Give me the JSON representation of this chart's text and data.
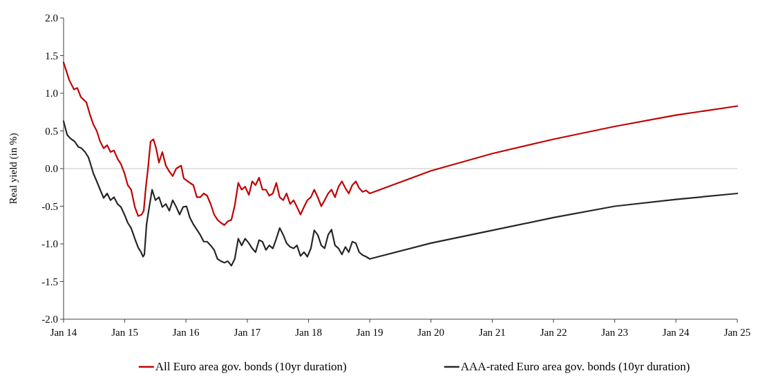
{
  "chart_data": {
    "type": "line",
    "ylabel": "Real yield (in %)",
    "xlim": [
      "2014-01-01",
      "2025-01-01"
    ],
    "xticks": [
      {
        "value": "2014-01-01",
        "label": "Jan 14"
      },
      {
        "value": "2015-01-01",
        "label": "Jan 15"
      },
      {
        "value": "2016-01-01",
        "label": "Jan 16"
      },
      {
        "value": "2017-01-01",
        "label": "Jan 17"
      },
      {
        "value": "2018-01-01",
        "label": "Jan 18"
      },
      {
        "value": "2019-01-01",
        "label": "Jan 19"
      },
      {
        "value": "2020-01-01",
        "label": "Jan 20"
      },
      {
        "value": "2021-01-01",
        "label": "Jan 21"
      },
      {
        "value": "2022-01-01",
        "label": "Jan 22"
      },
      {
        "value": "2023-01-01",
        "label": "Jan 23"
      },
      {
        "value": "2024-01-01",
        "label": "Jan 24"
      },
      {
        "value": "2025-01-01",
        "label": "Jan 25"
      }
    ],
    "ylim": [
      -2,
      2
    ],
    "yticks": [
      {
        "value": -2,
        "label": "-2.0"
      },
      {
        "value": -1.5,
        "label": "-1.5"
      },
      {
        "value": -1,
        "label": "-1.0"
      },
      {
        "value": -0.5,
        "label": "-0.5"
      },
      {
        "value": 0,
        "label": "0.0"
      },
      {
        "value": 0.5,
        "label": "0.5"
      },
      {
        "value": 1,
        "label": "1.0"
      },
      {
        "value": 1.5,
        "label": "1.5"
      },
      {
        "value": 2,
        "label": "2.0"
      }
    ],
    "ref_lines": [
      {
        "axis": "y",
        "value": 0,
        "color": "#d9d9d9"
      }
    ],
    "legend": "bottom",
    "line_style": "solid",
    "series": [
      {
        "name": "All Euro area gov. bonds (10yr duration)",
        "color": "#c00000",
        "x": [
          "2014-01-01",
          "2014-02-03",
          "2014-03-04",
          "2014-03-24",
          "2014-04-14",
          "2014-05-17",
          "2014-06-07",
          "2014-06-27",
          "2014-07-18",
          "2014-08-07",
          "2014-08-28",
          "2014-09-18",
          "2014-10-08",
          "2014-10-29",
          "2014-11-19",
          "2014-12-09",
          "2014-12-30",
          "2015-01-19",
          "2015-02-08",
          "2015-03-02",
          "2015-03-22",
          "2015-04-12",
          "2015-04-24",
          "2015-05-07",
          "2015-05-19",
          "2015-06-04",
          "2015-06-21",
          "2015-07-07",
          "2015-07-24",
          "2015-08-13",
          "2015-09-03",
          "2015-09-24",
          "2015-10-14",
          "2015-11-04",
          "2015-12-03",
          "2015-12-19",
          "2016-01-12",
          "2016-02-14",
          "2016-03-06",
          "2016-03-26",
          "2016-04-16",
          "2016-05-06",
          "2016-05-27",
          "2016-06-17",
          "2016-07-07",
          "2016-07-28",
          "2016-08-17",
          "2016-09-07",
          "2016-09-28",
          "2016-10-18",
          "2016-11-08",
          "2016-11-28",
          "2016-12-19",
          "2017-01-10",
          "2017-01-30",
          "2017-02-19",
          "2017-03-12",
          "2017-04-01",
          "2017-04-22",
          "2017-05-12",
          "2017-06-02",
          "2017-06-23",
          "2017-07-13",
          "2017-08-03",
          "2017-08-23",
          "2017-09-13",
          "2017-10-04",
          "2017-10-24",
          "2017-11-14",
          "2017-12-05",
          "2017-12-25",
          "2018-01-15",
          "2018-02-04",
          "2018-02-25",
          "2018-03-18",
          "2018-04-07",
          "2018-04-28",
          "2018-05-18",
          "2018-06-08",
          "2018-06-29",
          "2018-07-19",
          "2018-08-09",
          "2018-08-29",
          "2018-09-19",
          "2018-10-10",
          "2018-10-30",
          "2018-11-20",
          "2018-12-10",
          "2019-01-01",
          "2020-01-01",
          "2021-01-01",
          "2022-01-01",
          "2023-01-01",
          "2024-01-01",
          "2025-01-01"
        ],
        "values": [
          1.41,
          1.18,
          1.05,
          1.07,
          0.95,
          0.88,
          0.72,
          0.59,
          0.5,
          0.36,
          0.27,
          0.31,
          0.22,
          0.24,
          0.13,
          0.06,
          -0.06,
          -0.22,
          -0.28,
          -0.51,
          -0.63,
          -0.61,
          -0.56,
          -0.24,
          -0.01,
          0.36,
          0.39,
          0.27,
          0.08,
          0.22,
          0.04,
          -0.04,
          -0.1,
          0.0,
          0.04,
          -0.13,
          -0.17,
          -0.22,
          -0.38,
          -0.38,
          -0.33,
          -0.36,
          -0.47,
          -0.61,
          -0.68,
          -0.72,
          -0.75,
          -0.7,
          -0.68,
          -0.49,
          -0.19,
          -0.28,
          -0.24,
          -0.35,
          -0.17,
          -0.22,
          -0.12,
          -0.28,
          -0.28,
          -0.36,
          -0.33,
          -0.19,
          -0.38,
          -0.42,
          -0.33,
          -0.47,
          -0.42,
          -0.51,
          -0.61,
          -0.51,
          -0.42,
          -0.38,
          -0.28,
          -0.38,
          -0.5,
          -0.42,
          -0.33,
          -0.28,
          -0.38,
          -0.24,
          -0.17,
          -0.26,
          -0.33,
          -0.22,
          -0.17,
          -0.26,
          -0.31,
          -0.29,
          -0.33,
          -0.03,
          0.2,
          0.39,
          0.56,
          0.71,
          0.83
        ]
      },
      {
        "name": "AAA-rated Euro area gov. bonds (10yr duration)",
        "color": "#262626",
        "x": [
          "2014-01-01",
          "2014-01-22",
          "2014-02-11",
          "2014-03-08",
          "2014-03-29",
          "2014-04-18",
          "2014-05-09",
          "2014-05-29",
          "2014-06-11",
          "2014-06-27",
          "2014-07-18",
          "2014-08-07",
          "2014-08-28",
          "2014-09-18",
          "2014-10-08",
          "2014-10-29",
          "2014-11-19",
          "2014-12-09",
          "2014-12-30",
          "2015-01-19",
          "2015-02-08",
          "2015-03-02",
          "2015-03-22",
          "2015-04-08",
          "2015-04-20",
          "2015-04-28",
          "2015-05-11",
          "2015-05-27",
          "2015-06-13",
          "2015-07-03",
          "2015-07-24",
          "2015-08-13",
          "2015-09-03",
          "2015-09-24",
          "2015-10-14",
          "2015-11-04",
          "2015-11-24",
          "2015-12-15",
          "2016-01-04",
          "2016-01-24",
          "2016-02-14",
          "2016-03-06",
          "2016-03-26",
          "2016-04-16",
          "2016-05-06",
          "2016-05-27",
          "2016-06-17",
          "2016-07-07",
          "2016-07-28",
          "2016-08-17",
          "2016-09-07",
          "2016-09-28",
          "2016-10-18",
          "2016-11-08",
          "2016-11-28",
          "2016-12-19",
          "2017-01-10",
          "2017-01-30",
          "2017-02-19",
          "2017-03-12",
          "2017-04-01",
          "2017-04-22",
          "2017-05-12",
          "2017-06-02",
          "2017-06-23",
          "2017-07-13",
          "2017-08-03",
          "2017-08-23",
          "2017-09-13",
          "2017-10-04",
          "2017-10-24",
          "2017-11-14",
          "2017-12-05",
          "2017-12-25",
          "2018-01-15",
          "2018-02-04",
          "2018-02-25",
          "2018-03-18",
          "2018-04-07",
          "2018-04-28",
          "2018-05-18",
          "2018-06-08",
          "2018-06-29",
          "2018-07-19",
          "2018-08-09",
          "2018-08-29",
          "2018-09-19",
          "2018-10-10",
          "2018-10-30",
          "2018-11-20",
          "2018-12-10",
          "2019-01-01",
          "2020-01-01",
          "2021-01-01",
          "2022-01-01",
          "2023-01-01",
          "2024-01-01",
          "2025-01-01"
        ],
        "values": [
          0.63,
          0.45,
          0.4,
          0.36,
          0.29,
          0.27,
          0.22,
          0.15,
          0.06,
          -0.06,
          -0.17,
          -0.28,
          -0.39,
          -0.33,
          -0.42,
          -0.38,
          -0.47,
          -0.51,
          -0.61,
          -0.72,
          -0.79,
          -0.93,
          -1.05,
          -1.11,
          -1.17,
          -1.14,
          -0.74,
          -0.51,
          -0.28,
          -0.42,
          -0.38,
          -0.51,
          -0.47,
          -0.56,
          -0.42,
          -0.51,
          -0.61,
          -0.51,
          -0.5,
          -0.65,
          -0.74,
          -0.81,
          -0.88,
          -0.97,
          -0.97,
          -1.02,
          -1.08,
          -1.2,
          -1.23,
          -1.25,
          -1.23,
          -1.29,
          -1.2,
          -0.93,
          -1.02,
          -0.93,
          -0.99,
          -1.06,
          -1.11,
          -0.95,
          -0.97,
          -1.08,
          -1.02,
          -1.06,
          -0.93,
          -0.79,
          -0.88,
          -0.99,
          -1.04,
          -1.06,
          -1.02,
          -1.16,
          -1.11,
          -1.17,
          -1.06,
          -0.82,
          -0.88,
          -1.02,
          -1.06,
          -0.88,
          -0.81,
          -1.02,
          -1.06,
          -1.14,
          -1.04,
          -1.11,
          -0.97,
          -0.99,
          -1.11,
          -1.15,
          -1.17,
          -1.2,
          -0.99,
          -0.82,
          -0.65,
          -0.5,
          -0.41,
          -0.33
        ]
      }
    ]
  }
}
